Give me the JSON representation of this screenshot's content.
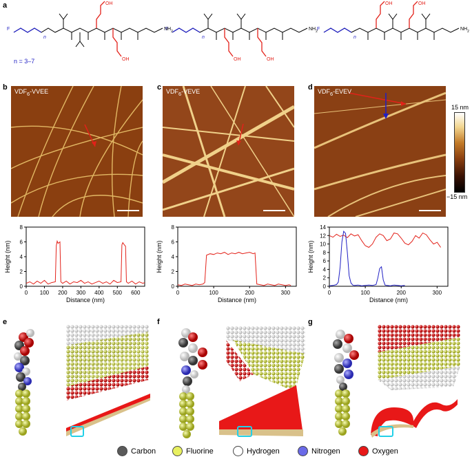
{
  "panels": {
    "a": "a",
    "b": "b",
    "c": "c",
    "d": "d",
    "e": "e",
    "f": "f",
    "g": "g"
  },
  "structures": {
    "f_label": "F",
    "n_label": "n",
    "n_range": "n = 3–7",
    "oh_label": "OH",
    "nh2_label": "NH",
    "nh2_sub": "2",
    "h_label": "H",
    "n_atom": "N"
  },
  "afm_images": [
    {
      "prefix": "VDF",
      "sub": "6",
      "suffix": "-VVEE"
    },
    {
      "prefix": "VDF",
      "sub": "6",
      "suffix": "-VEVE"
    },
    {
      "prefix": "VDF",
      "sub": "6",
      "suffix": "-EVEV"
    }
  ],
  "colorbar": {
    "max_label": "15 nm",
    "min_label": "−15 nm"
  },
  "chart_data": [
    {
      "type": "line",
      "xlabel": "Distance (nm)",
      "ylabel": "Height (nm)",
      "xlim": [
        0,
        650
      ],
      "ylim": [
        0,
        8
      ],
      "xticks": [
        "0",
        "100",
        "200",
        "300",
        "400",
        "500",
        "600"
      ],
      "yticks": [
        "0",
        "2",
        "4",
        "6",
        "8"
      ],
      "series": [
        {
          "color": "#e32119",
          "x": [
            0,
            20,
            40,
            60,
            80,
            100,
            120,
            140,
            160,
            165,
            170,
            175,
            185,
            190,
            200,
            220,
            240,
            260,
            280,
            300,
            320,
            340,
            360,
            380,
            400,
            420,
            440,
            460,
            480,
            500,
            520,
            525,
            530,
            535,
            545,
            550,
            560,
            580,
            600,
            620,
            640,
            650
          ],
          "y": [
            0.4,
            0.6,
            0.3,
            0.7,
            0.4,
            0.8,
            0.3,
            0.5,
            0.6,
            5.5,
            6.1,
            5.8,
            6.0,
            0.6,
            0.4,
            0.7,
            0.3,
            0.6,
            0.5,
            0.8,
            0.4,
            0.6,
            0.3,
            0.5,
            0.7,
            0.4,
            0.6,
            0.3,
            0.8,
            0.5,
            0.6,
            5.6,
            5.9,
            5.7,
            5.4,
            0.6,
            0.4,
            0.7,
            0.3,
            0.6,
            0.4,
            0.5
          ]
        }
      ]
    },
    {
      "type": "line",
      "xlabel": "Distance (nm)",
      "ylabel": "Height (nm)",
      "xlim": [
        0,
        330
      ],
      "ylim": [
        0,
        8
      ],
      "xticks": [
        "0",
        "100",
        "200",
        "300"
      ],
      "yticks": [
        "0",
        "2",
        "4",
        "6",
        "8"
      ],
      "series": [
        {
          "color": "#e32119",
          "x": [
            0,
            10,
            20,
            30,
            40,
            50,
            60,
            70,
            75,
            80,
            90,
            100,
            110,
            120,
            130,
            140,
            150,
            160,
            170,
            180,
            190,
            200,
            210,
            215,
            220,
            230,
            240,
            250,
            260,
            270,
            280,
            290,
            300,
            310,
            315
          ],
          "y": [
            0.2,
            0.1,
            0.3,
            0.2,
            0.1,
            0.3,
            0.2,
            0.3,
            0.5,
            4.2,
            4.4,
            4.3,
            4.5,
            4.4,
            4.6,
            4.3,
            4.5,
            4.4,
            4.6,
            4.4,
            4.5,
            4.6,
            4.4,
            4.5,
            0.3,
            0.2,
            0.1,
            0.3,
            0.2,
            0.1,
            0.3,
            0.2,
            0.1,
            0.2,
            0.1
          ]
        }
      ]
    },
    {
      "type": "line",
      "xlabel": "Distance (nm)",
      "ylabel": "Height (nm)",
      "xlim": [
        0,
        330
      ],
      "ylim": [
        0,
        14
      ],
      "xticks": [
        "0",
        "100",
        "200",
        "300"
      ],
      "yticks": [
        "0",
        "2",
        "4",
        "6",
        "8",
        "10",
        "12",
        "14"
      ],
      "series": [
        {
          "color": "#e32119",
          "x": [
            0,
            10,
            20,
            30,
            40,
            50,
            60,
            70,
            80,
            90,
            100,
            110,
            120,
            130,
            140,
            150,
            160,
            170,
            180,
            190,
            200,
            210,
            220,
            230,
            240,
            250,
            260,
            270,
            280,
            290,
            300,
            310
          ],
          "y": [
            12.0,
            11.6,
            12.3,
            11.8,
            12.1,
            11.5,
            12.4,
            11.9,
            12.2,
            10.8,
            9.6,
            9.2,
            10.0,
            11.6,
            12.4,
            12.0,
            10.8,
            11.2,
            12.6,
            12.4,
            11.4,
            10.2,
            9.8,
            10.6,
            12.0,
            11.4,
            12.6,
            12.2,
            11.0,
            10.0,
            10.4,
            9.2
          ]
        },
        {
          "color": "#1f1fc4",
          "x": [
            0,
            10,
            20,
            25,
            30,
            35,
            40,
            45,
            50,
            55,
            60,
            65,
            70,
            80,
            90,
            100,
            110,
            120,
            130,
            135,
            140,
            145,
            150,
            155,
            160,
            170,
            180,
            190,
            200,
            210
          ],
          "y": [
            0.1,
            0.2,
            0.4,
            1.0,
            4.5,
            10.5,
            13.0,
            12.5,
            8.0,
            2.5,
            0.8,
            0.3,
            0.2,
            0.3,
            0.1,
            0.2,
            0.3,
            0.2,
            0.4,
            2.0,
            4.2,
            4.6,
            1.5,
            0.3,
            0.2,
            0.1,
            0.3,
            0.2,
            0.1,
            0.2
          ]
        }
      ]
    }
  ],
  "legend": [
    {
      "name": "Carbon",
      "color": "#5a5a5a"
    },
    {
      "name": "Fluorine",
      "color": "#e8f060"
    },
    {
      "name": "Hydrogen",
      "color": "#ffffff"
    },
    {
      "name": "Nitrogen",
      "color": "#6a6ae8"
    },
    {
      "name": "Oxygen",
      "color": "#e81818"
    }
  ]
}
